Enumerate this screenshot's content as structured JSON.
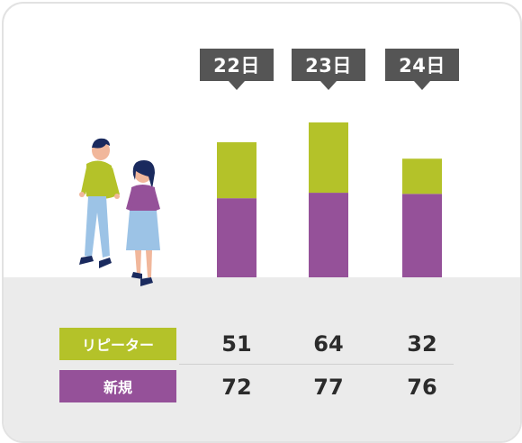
{
  "chart_data": {
    "type": "bar",
    "stacked": true,
    "categories": [
      "22日",
      "23日",
      "24日"
    ],
    "series": [
      {
        "name": "新規",
        "values": [
          72,
          77,
          76
        ],
        "color": "#955199"
      },
      {
        "name": "リピーター",
        "values": [
          51,
          64,
          32
        ],
        "color": "#b4c229"
      }
    ],
    "ylim": [
      0,
      145
    ],
    "grid": false,
    "legend": "bottom-left"
  },
  "illustration": {
    "description_icon": "couple-walking-icon"
  }
}
